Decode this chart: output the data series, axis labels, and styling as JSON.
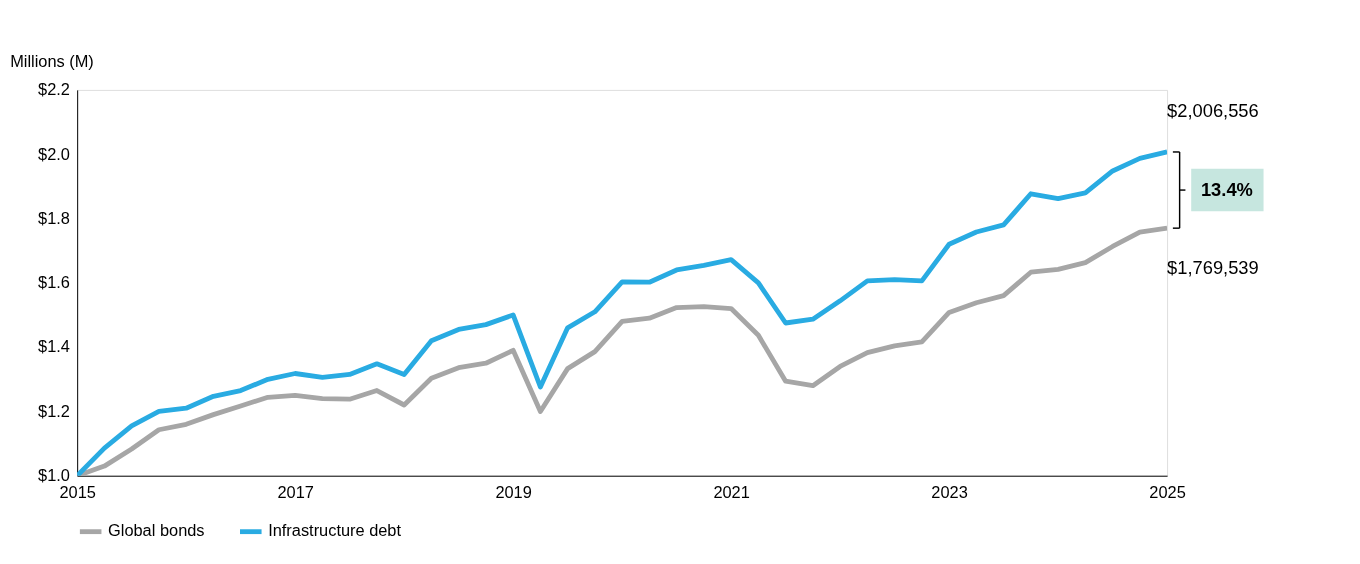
{
  "chart_data": {
    "type": "line",
    "ylabel": "Millions (M)",
    "x": [
      2015,
      2015.25,
      2015.5,
      2015.75,
      2016,
      2016.25,
      2016.5,
      2016.75,
      2017,
      2017.25,
      2017.5,
      2017.75,
      2018,
      2018.25,
      2018.5,
      2018.75,
      2019,
      2019.25,
      2019.5,
      2019.75,
      2020,
      2020.25,
      2020.5,
      2020.75,
      2021,
      2021.25,
      2021.5,
      2021.75,
      2022,
      2022.25,
      2022.5,
      2022.75,
      2023,
      2023.25,
      2023.5,
      2023.75,
      2024,
      2024.25,
      2024.5,
      2024.75,
      2025
    ],
    "series": [
      {
        "name": "Global bonds",
        "color": "#a6a6a6",
        "values": [
          1.0,
          1.03,
          1.083,
          1.143,
          1.16,
          1.19,
          1.217,
          1.244,
          1.25,
          1.24,
          1.238,
          1.265,
          1.22,
          1.303,
          1.336,
          1.35,
          1.39,
          1.2,
          1.333,
          1.386,
          1.48,
          1.49,
          1.523,
          1.526,
          1.52,
          1.437,
          1.294,
          1.28,
          1.34,
          1.383,
          1.404,
          1.416,
          1.508,
          1.538,
          1.56,
          1.633,
          1.642,
          1.663,
          1.713,
          1.758,
          1.77
        ]
      },
      {
        "name": "Infrastructure debt",
        "color": "#29abe2",
        "values": [
          1.0,
          1.086,
          1.155,
          1.2,
          1.21,
          1.247,
          1.265,
          1.3,
          1.318,
          1.306,
          1.315,
          1.348,
          1.315,
          1.42,
          1.455,
          1.47,
          1.5,
          1.276,
          1.46,
          1.51,
          1.603,
          1.602,
          1.64,
          1.654,
          1.672,
          1.6,
          1.475,
          1.487,
          1.544,
          1.606,
          1.61,
          1.606,
          1.72,
          1.758,
          1.78,
          1.877,
          1.862,
          1.88,
          1.948,
          1.987,
          2.007
        ]
      }
    ],
    "xlim": [
      2015,
      2025
    ],
    "xticks": [
      2015,
      2017,
      2019,
      2021,
      2023,
      2025
    ],
    "ylim": [
      1.0,
      2.2
    ],
    "yticks": [
      {
        "value": 1.0,
        "label": "$1.0"
      },
      {
        "value": 1.2,
        "label": "$1.2"
      },
      {
        "value": 1.4,
        "label": "$1.4"
      },
      {
        "value": 1.6,
        "label": "$1.6"
      },
      {
        "value": 1.8,
        "label": "$1.8"
      },
      {
        "value": 2.0,
        "label": "$2.0"
      },
      {
        "value": 2.2,
        "label": "$2.2"
      }
    ],
    "annotations": [
      {
        "text": "$2,006,556",
        "x": 2025,
        "y": 2.007
      },
      {
        "text": "$1,769,539",
        "x": 2025,
        "y": 1.77
      },
      "13.4%"
    ],
    "grid": false,
    "legend": "bottom",
    "marker": "none",
    "line_style": "solid"
  }
}
